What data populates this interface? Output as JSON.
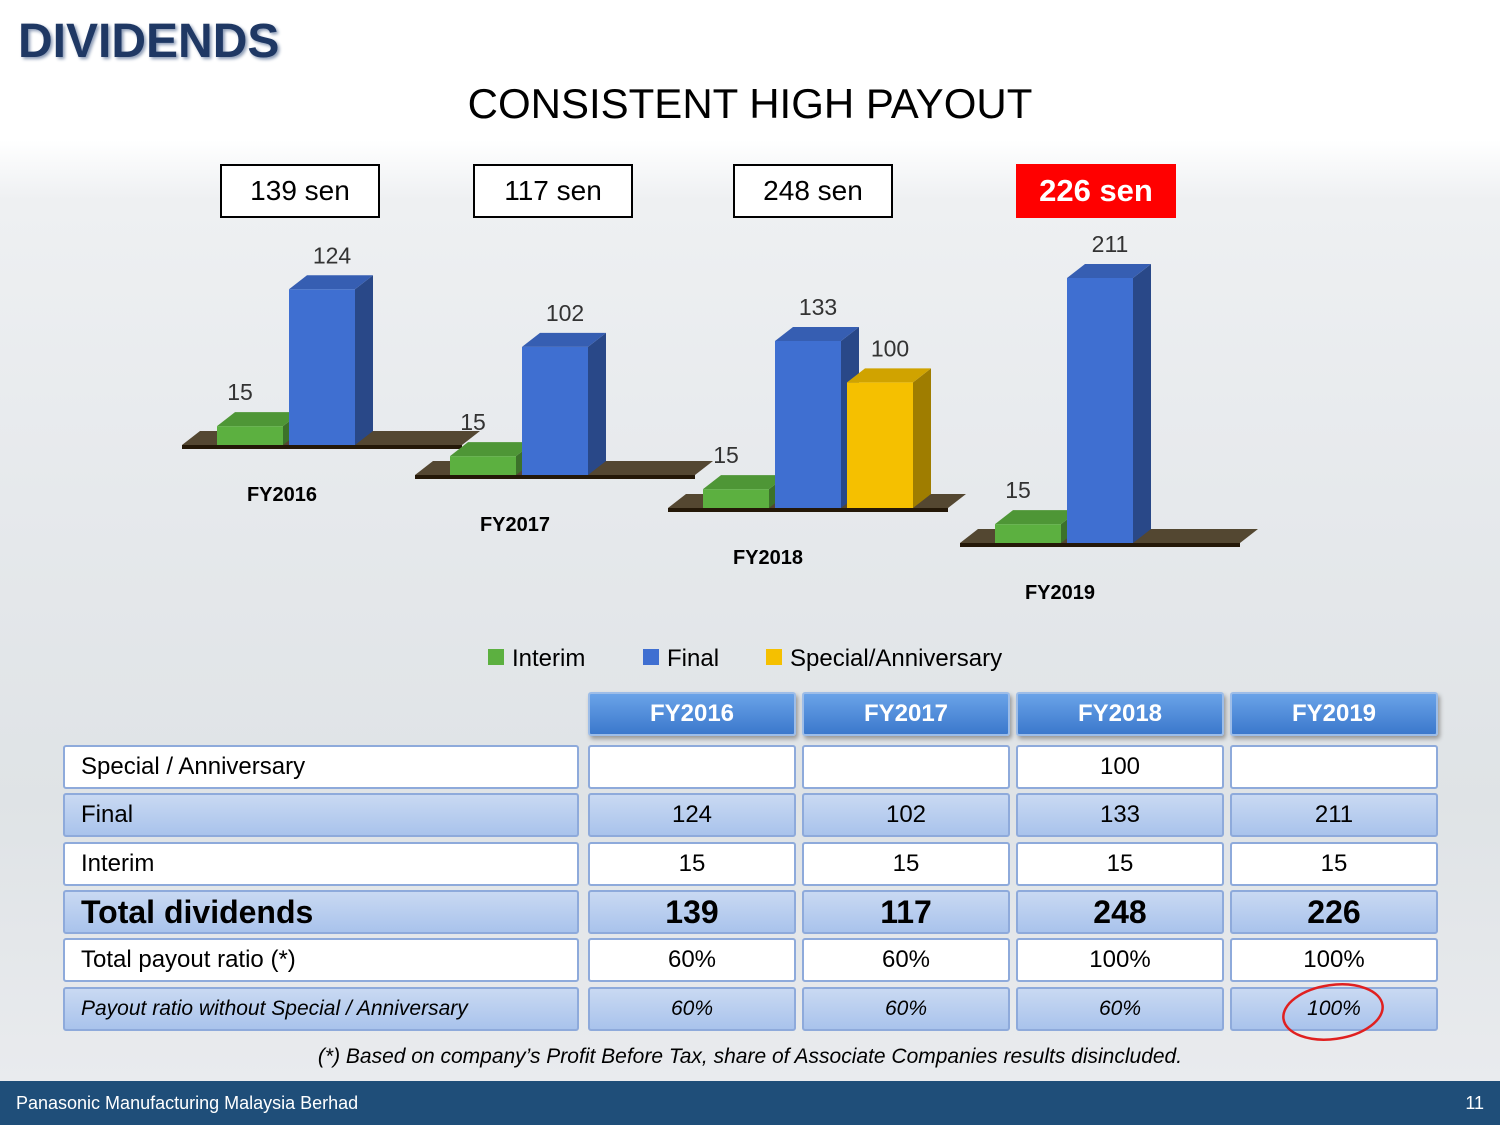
{
  "header": {
    "title": "DIVIDENDS",
    "subtitle": "CONSISTENT HIGH PAYOUT"
  },
  "totals_boxes": [
    "139 sen",
    "117 sen",
    "248 sen",
    "226 sen"
  ],
  "chart_data": {
    "type": "bar3d",
    "categories": [
      "FY2016",
      "FY2017",
      "FY2018",
      "FY2019"
    ],
    "series": [
      {
        "name": "Interim",
        "color": "#5cb040",
        "values": [
          15,
          15,
          15,
          15
        ]
      },
      {
        "name": "Final",
        "color": "#3f6fd1",
        "values": [
          124,
          102,
          133,
          211
        ]
      },
      {
        "name": "Special/Anniversary",
        "color": "#f5c000",
        "values": [
          null,
          null,
          100,
          null
        ]
      }
    ]
  },
  "table": {
    "columns": [
      "FY2016",
      "FY2017",
      "FY2018",
      "FY2019"
    ],
    "rows": [
      {
        "label": "Special / Anniversary",
        "cells": [
          null,
          null,
          100,
          null
        ]
      },
      {
        "label": "Final",
        "cells": [
          124,
          102,
          133,
          211
        ]
      },
      {
        "label": "Interim",
        "cells": [
          15,
          15,
          15,
          15
        ]
      },
      {
        "label": "Total dividends",
        "cells": [
          139,
          117,
          248,
          226
        ]
      },
      {
        "label": "Total payout ratio (*)",
        "cells": [
          "60%",
          "60%",
          "100%",
          "100%"
        ]
      },
      {
        "label": "Payout ratio without Special / Anniversary",
        "cells": [
          "60%",
          "60%",
          "60%",
          "100%"
        ]
      }
    ]
  },
  "footnote": "(*) Based on company’s Profit Before Tax, share of Associate Companies results disincluded.",
  "footer": {
    "company": "Panasonic Manufacturing Malaysia Berhad",
    "page": "11"
  }
}
